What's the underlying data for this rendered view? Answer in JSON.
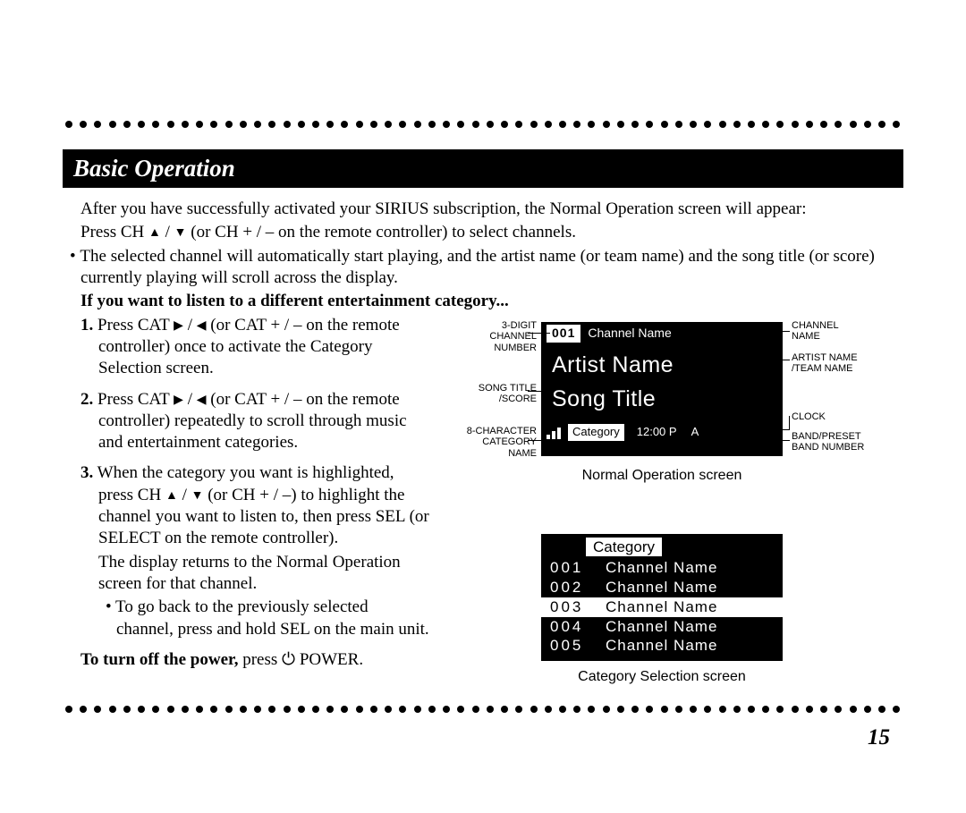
{
  "page_number": "15",
  "colors": {
    "bg": "#ffffff",
    "ink": "#000000",
    "reverse": "#ffffff"
  },
  "header": "Basic Operation",
  "intro_line": "After you have successfully activated your SIRIUS subscription, the Normal Operation screen will appear:",
  "press_ch_line_prefix": "Press CH ",
  "press_ch_line_mid": " (or CH + / – on the remote controller) to select channels.",
  "bullet1": "The selected channel will automatically start playing, and the artist name (or team name) and the song title (or score) currently playing will scroll across the display.",
  "subhead": "If you want to listen to a different entertainment category...",
  "steps": [
    {
      "marker": "1.",
      "text_prefix": "Press CAT ",
      "text_suffix": " (or CAT + / – on the remote controller) once to activate the Category Selection screen."
    },
    {
      "marker": "2.",
      "text_prefix": "Press CAT ",
      "text_suffix": " (or CAT + / – on the remote controller) repeatedly to scroll through music and entertainment categories."
    }
  ],
  "step3": {
    "marker": "3.",
    "text_prefix": "When the category you want is highlighted, press CH ",
    "text_mid": " (or CH + / –) to highlight the channel you want to listen to, then press SEL (or SELECT on the remote controller).",
    "text_after": "The display returns to the Normal Operation screen for that channel.",
    "sub_bullet": "To go back to the previously selected channel, press and hold SEL on the main unit."
  },
  "power_note_bold": "To turn off the power,",
  "power_note_rest": " press ",
  "power_note_end": " POWER.",
  "glyphs": {
    "up": "▲",
    "down": "▼",
    "right": "▶",
    "left": "◀",
    "power": "⏻",
    "slash": " / "
  },
  "lcd1": {
    "channel_number": "001",
    "channel_name": "Channel Name",
    "artist": "Artist Name",
    "song": "Song Title",
    "category": "Category",
    "clock": "12:00 P",
    "band": "A",
    "caption": "Normal Operation screen"
  },
  "lcd1_labels": {
    "l1": "3-DIGIT\nCHANNEL\nNUMBER",
    "l2": "SONG TITLE\n/SCORE",
    "l3": "8-CHARACTER\nCATEGORY\nNAME",
    "r1": "CHANNEL\nNAME",
    "r2": "ARTIST NAME\n/TEAM NAME",
    "r3": "CLOCK",
    "r4": "BAND/PRESET\nBAND NUMBER"
  },
  "lcd2": {
    "header": "Category",
    "rows": [
      {
        "num": "001",
        "name": "Channel Name",
        "hl": false
      },
      {
        "num": "002",
        "name": "Channel Name",
        "hl": false
      },
      {
        "num": "003",
        "name": "Channel Name",
        "hl": true
      },
      {
        "num": "004",
        "name": "Channel Name",
        "hl": false
      },
      {
        "num": "005",
        "name": "Channel Name",
        "hl": false
      }
    ],
    "caption": "Category Selection screen"
  }
}
